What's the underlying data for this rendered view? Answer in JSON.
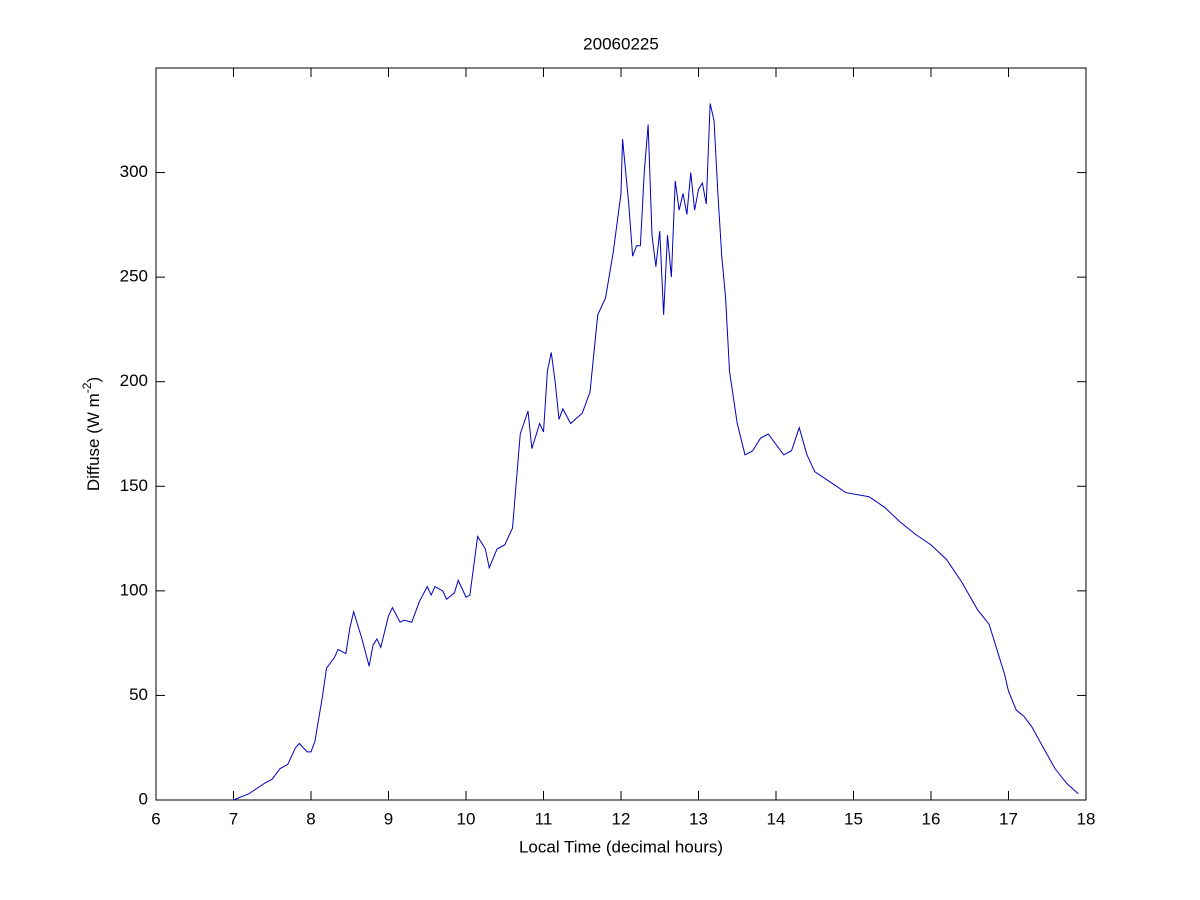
{
  "chart_data": {
    "type": "line",
    "title": "20060225",
    "xlabel": "Local Time (decimal hours)",
    "ylabel": [
      "Diffuse (W m",
      "-2",
      ")"
    ],
    "xlim": [
      6,
      18
    ],
    "xticks": [
      6,
      7,
      8,
      9,
      10,
      11,
      12,
      13,
      14,
      15,
      16,
      17,
      18
    ],
    "ylim": [
      0,
      350
    ],
    "yticks": [
      0,
      50,
      100,
      150,
      200,
      250,
      300
    ],
    "series": [
      {
        "color": "#0000c0",
        "x": [
          7.0,
          7.2,
          7.4,
          7.5,
          7.6,
          7.7,
          7.8,
          7.85,
          7.95,
          8.0,
          8.05,
          8.15,
          8.2,
          8.3,
          8.35,
          8.45,
          8.5,
          8.55,
          8.65,
          8.75,
          8.8,
          8.85,
          8.9,
          9.0,
          9.05,
          9.15,
          9.2,
          9.3,
          9.4,
          9.5,
          9.55,
          9.6,
          9.7,
          9.75,
          9.85,
          9.9,
          10.0,
          10.05,
          10.15,
          10.25,
          10.3,
          10.4,
          10.5,
          10.6,
          10.7,
          10.8,
          10.85,
          10.95,
          11.0,
          11.05,
          11.1,
          11.15,
          11.2,
          11.25,
          11.35,
          11.5,
          11.6,
          11.7,
          11.8,
          11.9,
          12.0,
          12.02,
          12.1,
          12.15,
          12.2,
          12.25,
          12.3,
          12.35,
          12.4,
          12.45,
          12.5,
          12.55,
          12.6,
          12.65,
          12.7,
          12.75,
          12.8,
          12.85,
          12.9,
          12.95,
          13.0,
          13.05,
          13.1,
          13.15,
          13.2,
          13.25,
          13.3,
          13.35,
          13.4,
          13.5,
          13.6,
          13.7,
          13.8,
          13.9,
          14.0,
          14.1,
          14.2,
          14.3,
          14.4,
          14.5,
          14.7,
          14.9,
          15.2,
          15.4,
          15.6,
          15.8,
          16.0,
          16.2,
          16.4,
          16.6,
          16.75,
          16.85,
          16.95,
          17.0,
          17.1,
          17.2,
          17.3,
          17.45,
          17.6,
          17.75,
          17.9
        ],
        "values": [
          0,
          3,
          8,
          10,
          15,
          17,
          25,
          27,
          23,
          23,
          28,
          50,
          63,
          68,
          72,
          70,
          82,
          90,
          78,
          64,
          74,
          77,
          73,
          88,
          92,
          85,
          86,
          85,
          95,
          102,
          98,
          102,
          100,
          96,
          99,
          105,
          97,
          98,
          126,
          120,
          111,
          120,
          122,
          130,
          175,
          186,
          168,
          180,
          176,
          205,
          214,
          200,
          182,
          187,
          180,
          185,
          195,
          232,
          240,
          262,
          290,
          316,
          285,
          260,
          265,
          265,
          300,
          323,
          270,
          255,
          272,
          232,
          270,
          250,
          296,
          282,
          290,
          280,
          300,
          282,
          292,
          295,
          285,
          333,
          325,
          290,
          260,
          240,
          205,
          180,
          165,
          167,
          173,
          175,
          170,
          165,
          167,
          178,
          165,
          157,
          152,
          147,
          145,
          140,
          133,
          127,
          122,
          115,
          104,
          91,
          84,
          72,
          60,
          52,
          43,
          40,
          35,
          25,
          15,
          8,
          3
        ]
      }
    ]
  }
}
